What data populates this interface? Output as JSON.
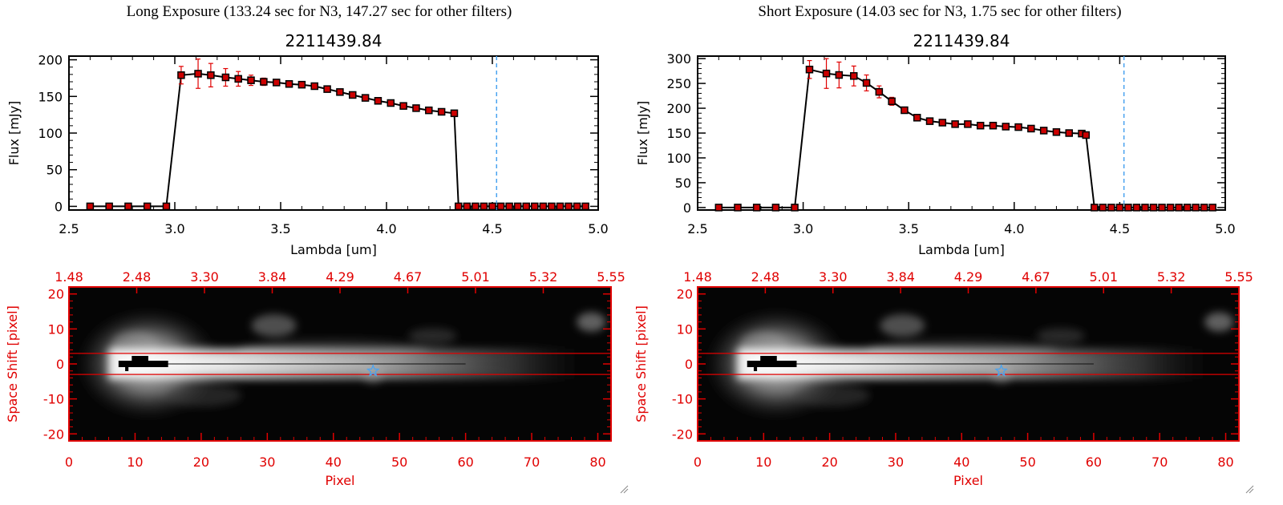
{
  "panels": [
    {
      "title": "Long Exposure (133.24 sec for N3, 147.27 sec for other filters)"
    },
    {
      "title": "Short Exposure (14.03 sec for N3, 1.75 sec for other filters)"
    }
  ],
  "colors": {
    "axis": "#000000",
    "errorbar": "#e00000",
    "marker_fill": "#cc0000",
    "marker_edge": "#000000",
    "cutoff_line": "#4aa3f0",
    "image_axis": "#e00000",
    "aperture_line": "#e00000",
    "source_marker": "#4aa3f0"
  },
  "chart_data": [
    {
      "type": "line",
      "title": "2211439.84",
      "xlabel": "Lambda [um]",
      "ylabel": "Flux [mJy]",
      "xlim": [
        2.5,
        5.0
      ],
      "ylim": [
        -5,
        205
      ],
      "xticks": [
        "2.5",
        "3.0",
        "3.5",
        "4.0",
        "4.5",
        "5.0"
      ],
      "yticks": [
        "0",
        "50",
        "100",
        "150",
        "200"
      ],
      "vline_x": 4.52,
      "series": [
        {
          "x": [
            2.6,
            2.69,
            2.78,
            2.87,
            2.96,
            3.03,
            3.11,
            3.17,
            3.24,
            3.3,
            3.36,
            3.42,
            3.48,
            3.54,
            3.6,
            3.66,
            3.72,
            3.78,
            3.84,
            3.9,
            3.96,
            4.02,
            4.08,
            4.14,
            4.2,
            4.26,
            4.32,
            4.34,
            4.38,
            4.42,
            4.46,
            4.5,
            4.54,
            4.58,
            4.62,
            4.66,
            4.7,
            4.74,
            4.78,
            4.82,
            4.86,
            4.9,
            4.94
          ],
          "y": [
            0,
            0,
            0,
            0,
            0,
            179,
            181,
            179,
            176,
            174,
            172,
            170,
            169,
            167,
            166,
            164,
            160,
            156,
            152,
            148,
            144,
            141,
            137,
            134,
            131,
            129,
            127,
            0,
            0,
            0,
            0,
            0,
            0,
            0,
            0,
            0,
            0,
            0,
            0,
            0,
            0,
            0,
            0
          ],
          "err": [
            0,
            0,
            0,
            0,
            0,
            12,
            20,
            16,
            12,
            10,
            7,
            5,
            4,
            3,
            3,
            2,
            2,
            2,
            2,
            2,
            2,
            2,
            2,
            2,
            2,
            2,
            2,
            0,
            0,
            0,
            0,
            0,
            0,
            0,
            0,
            0,
            0,
            0,
            0,
            0,
            0,
            0,
            0
          ]
        }
      ]
    },
    {
      "type": "line",
      "title": "2211439.84",
      "xlabel": "Lambda [um]",
      "ylabel": "Flux [mJy]",
      "xlim": [
        2.5,
        5.0
      ],
      "ylim": [
        -5,
        305
      ],
      "xticks": [
        "2.5",
        "3.0",
        "3.5",
        "4.0",
        "4.5",
        "5.0"
      ],
      "yticks": [
        "0",
        "50",
        "100",
        "150",
        "200",
        "250",
        "300"
      ],
      "vline_x": 4.52,
      "series": [
        {
          "x": [
            2.6,
            2.69,
            2.78,
            2.87,
            2.96,
            3.03,
            3.11,
            3.17,
            3.24,
            3.3,
            3.36,
            3.42,
            3.48,
            3.54,
            3.6,
            3.66,
            3.72,
            3.78,
            3.84,
            3.9,
            3.96,
            4.02,
            4.08,
            4.14,
            4.2,
            4.26,
            4.32,
            4.34,
            4.38,
            4.42,
            4.46,
            4.5,
            4.54,
            4.58,
            4.62,
            4.66,
            4.7,
            4.74,
            4.78,
            4.82,
            4.86,
            4.9,
            4.94
          ],
          "y": [
            0,
            0,
            0,
            0,
            0,
            278,
            270,
            267,
            265,
            251,
            233,
            214,
            196,
            181,
            174,
            171,
            168,
            168,
            165,
            165,
            163,
            162,
            159,
            155,
            152,
            150,
            149,
            146,
            0,
            0,
            0,
            0,
            0,
            0,
            0,
            0,
            0,
            0,
            0,
            0,
            0,
            0,
            0
          ],
          "err": [
            0,
            0,
            0,
            0,
            0,
            18,
            30,
            26,
            20,
            16,
            12,
            8,
            5,
            4,
            3,
            3,
            2,
            2,
            2,
            2,
            2,
            2,
            2,
            2,
            2,
            2,
            2,
            2,
            0,
            0,
            0,
            0,
            0,
            0,
            0,
            0,
            0,
            0,
            0,
            0,
            0,
            0,
            0
          ]
        }
      ]
    },
    {
      "type": "heatmap",
      "xlabel": "Pixel",
      "ylabel": "Space Shift [pixel]",
      "xlim": [
        0,
        82
      ],
      "ylim": [
        -22,
        22
      ],
      "xticks": [
        "0",
        "10",
        "20",
        "30",
        "40",
        "50",
        "60",
        "70",
        "80"
      ],
      "yticks": [
        "-20",
        "-10",
        "0",
        "10",
        "20"
      ],
      "top_ticks": [
        "1.48",
        "2.48",
        "3.30",
        "3.84",
        "4.29",
        "4.67",
        "5.01",
        "5.32",
        "5.55"
      ],
      "aperture_y": [
        -3,
        3
      ],
      "source_marker": [
        46,
        -2
      ]
    },
    {
      "type": "heatmap",
      "xlabel": "Pixel",
      "ylabel": "Space Shift [pixel]",
      "xlim": [
        0,
        82
      ],
      "ylim": [
        -22,
        22
      ],
      "xticks": [
        "0",
        "10",
        "20",
        "30",
        "40",
        "50",
        "60",
        "70",
        "80"
      ],
      "yticks": [
        "-20",
        "-10",
        "0",
        "10",
        "20"
      ],
      "top_ticks": [
        "1.48",
        "2.48",
        "3.30",
        "3.84",
        "4.29",
        "4.67",
        "5.01",
        "5.32",
        "5.55"
      ],
      "aperture_y": [
        -3,
        3
      ],
      "source_marker": [
        46,
        -2
      ]
    }
  ]
}
